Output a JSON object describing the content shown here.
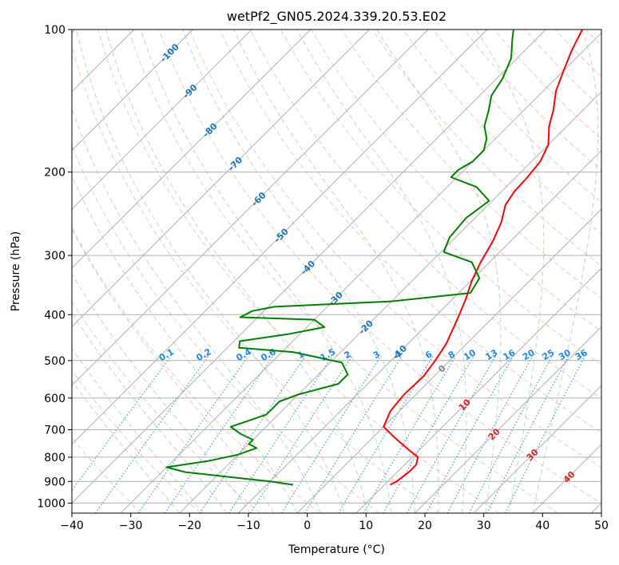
{
  "chart_data": {
    "type": "line",
    "subtype": "skew-t log-p diagram",
    "title": "wetPf2_GN05.2024.339.20.53.E02",
    "xlabel": "Temperature (°C)",
    "ylabel": "Pressure (hPa)",
    "xlim": [
      -40,
      50
    ],
    "ylim": [
      1050,
      100
    ],
    "yscale": "log",
    "x_ticks": [
      "-40",
      "-30",
      "-20",
      "-10",
      "0",
      "10",
      "20",
      "30",
      "40",
      "50"
    ],
    "y_ticks": [
      "100",
      "200",
      "300",
      "400",
      "500",
      "600",
      "700",
      "800",
      "900",
      "1000"
    ],
    "grid": true,
    "isotherm_labels": [
      "-100",
      "-90",
      "-80",
      "-70",
      "-60",
      "-50",
      "-40",
      "-30",
      "-20",
      "-10",
      "0",
      "10",
      "20",
      "30",
      "40"
    ],
    "mixing_ratio_labels": [
      "0.1",
      "0.2",
      "0.4",
      "0.6",
      "1",
      "1.5",
      "2",
      "3",
      "4",
      "6",
      "8",
      "10",
      "13",
      "16",
      "20",
      "25",
      "30",
      "36"
    ],
    "colors": {
      "temperature": "#ff0000",
      "dewpoint": "#008000",
      "isotherm_label": "#1f77b4",
      "mixing_ratio": "#1e88e5",
      "isotherm_warm_label": "#d62728",
      "zero_isotherm_label": "#808080",
      "dry_adiabat": "#fa8060",
      "moist_adiabat": "#4caf50",
      "grid": "#b0b0b0"
    },
    "series": [
      {
        "name": "",
        "role": "temperature",
        "points": [
          [
            11,
            915
          ],
          [
            11.5,
            900
          ],
          [
            12,
            860
          ],
          [
            12,
            830
          ],
          [
            11,
            800
          ],
          [
            8,
            770
          ],
          [
            4,
            730
          ],
          [
            0,
            690
          ],
          [
            -1.5,
            640
          ],
          [
            -2,
            590
          ],
          [
            -1.8,
            540
          ],
          [
            -2.5,
            500
          ],
          [
            -3.5,
            460
          ],
          [
            -4.8,
            430
          ],
          [
            -6.2,
            400
          ],
          [
            -7.8,
            370
          ],
          [
            -9.8,
            340
          ],
          [
            -11.5,
            310
          ],
          [
            -13,
            280
          ],
          [
            -14.8,
            255
          ],
          [
            -17,
            235
          ],
          [
            -17.8,
            220
          ],
          [
            -18,
            205
          ],
          [
            -18.5,
            190
          ],
          [
            -20,
            175
          ],
          [
            -23,
            160
          ],
          [
            -25,
            148
          ],
          [
            -27.8,
            135
          ],
          [
            -30,
            122
          ],
          [
            -32,
            111
          ],
          [
            -33.8,
            100
          ]
        ]
      },
      {
        "name": "",
        "role": "dewpoint",
        "points": [
          [
            -5.5,
            915
          ],
          [
            -10,
            900
          ],
          [
            -18,
            880
          ],
          [
            -26,
            860
          ],
          [
            -30,
            840
          ],
          [
            -24,
            815
          ],
          [
            -20,
            790
          ],
          [
            -18,
            765
          ],
          [
            -20,
            750
          ],
          [
            -20,
            735
          ],
          [
            -23,
            715
          ],
          [
            -26,
            690
          ],
          [
            -24,
            670
          ],
          [
            -22,
            650
          ],
          [
            -22,
            630
          ],
          [
            -22,
            610
          ],
          [
            -20,
            590
          ],
          [
            -15,
            560
          ],
          [
            -15,
            535
          ],
          [
            -18,
            505
          ],
          [
            -28,
            480
          ],
          [
            -38,
            470
          ],
          [
            -39,
            455
          ],
          [
            -32,
            440
          ],
          [
            -27,
            425
          ],
          [
            -30,
            410
          ],
          [
            -43,
            405
          ],
          [
            -42,
            393
          ],
          [
            -39,
            385
          ],
          [
            -20,
            375
          ],
          [
            -8,
            360
          ],
          [
            -9,
            335
          ],
          [
            -13,
            310
          ],
          [
            -19.5,
            295
          ],
          [
            -21,
            275
          ],
          [
            -21.5,
            250
          ],
          [
            -20.5,
            230
          ],
          [
            -25,
            215
          ],
          [
            -31,
            205
          ],
          [
            -31,
            198
          ],
          [
            -30,
            190
          ],
          [
            -30,
            180
          ],
          [
            -31.5,
            170
          ],
          [
            -34,
            160
          ],
          [
            -36,
            148
          ],
          [
            -38,
            138
          ],
          [
            -39,
            127
          ],
          [
            -41,
            115
          ],
          [
            -44,
            105
          ],
          [
            -45.5,
            100
          ]
        ]
      }
    ]
  }
}
